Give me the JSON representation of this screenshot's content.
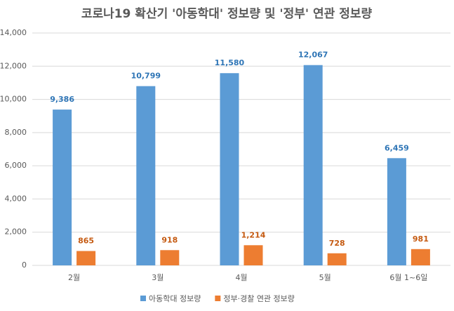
{
  "chart_data": {
    "type": "bar",
    "title": "코로나19 확산기 '아동학대' 정보량 및 '정부' 연관 정보량",
    "categories": [
      "2월",
      "3월",
      "4월",
      "5월",
      "6월 1~6일"
    ],
    "series": [
      {
        "name": "아동학대 정보량",
        "color": "#5b9bd5",
        "label_color": "#2e75b6",
        "values": [
          9386,
          10799,
          11580,
          12067,
          6459
        ],
        "value_labels": [
          "9,386",
          "10,799",
          "11,580",
          "12,067",
          "6,459"
        ]
      },
      {
        "name": "정부·경찰 연관 정보량",
        "color": "#ed7d31",
        "label_color": "#c55a11",
        "values": [
          865,
          918,
          1214,
          728,
          981
        ],
        "value_labels": [
          "865",
          "918",
          "1,214",
          "728",
          "981"
        ]
      }
    ],
    "ylim": [
      0,
      14000
    ],
    "yticks": [
      0,
      {
        "value": 2000,
        "label": "2,000"
      },
      {
        "value": 4000,
        "label": "4,000"
      },
      {
        "value": 6000,
        "label": "6,000"
      },
      {
        "value": 8000,
        "label": "8,000"
      },
      {
        "value": 10000,
        "label": "10,000"
      },
      {
        "value": 12000,
        "label": "12,000"
      },
      {
        "value": 14000,
        "label": "14,000"
      }
    ],
    "grid": true,
    "legend": "bottom"
  }
}
